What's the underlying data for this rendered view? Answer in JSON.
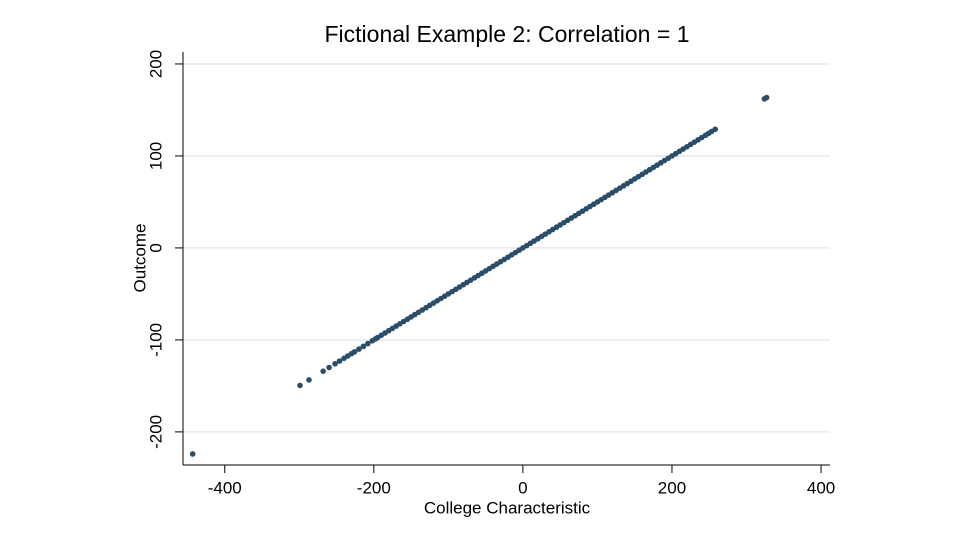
{
  "chart_data": {
    "type": "scatter",
    "title": "Fictional Example 2: Correlation = 1",
    "xlabel": "College Characteristic",
    "ylabel": "Outcome",
    "xlim": [
      -456,
      412
    ],
    "ylim": [
      -236,
      213
    ],
    "xticks": [
      -400,
      -200,
      0,
      200,
      400
    ],
    "yticks": [
      -200,
      -100,
      0,
      100,
      200
    ],
    "grid": true,
    "color": "#2a4d69",
    "x": [
      -443,
      -299,
      -287,
      -268,
      -260,
      -252,
      -246,
      -240,
      -235,
      -230,
      -226,
      -220,
      -214,
      -208,
      -202,
      -198,
      -195,
      -190,
      -185,
      -180,
      -175,
      -170,
      -165,
      -160,
      -155,
      -150,
      -145,
      -140,
      -135,
      -130,
      -125,
      -120,
      -115,
      -110,
      -105,
      -100,
      -95,
      -90,
      -85,
      -80,
      -75,
      -70,
      -65,
      -60,
      -55,
      -50,
      -45,
      -40,
      -35,
      -30,
      -25,
      -20,
      -15,
      -10,
      -5,
      0,
      5,
      10,
      15,
      20,
      25,
      30,
      35,
      40,
      45,
      50,
      55,
      60,
      65,
      70,
      75,
      80,
      85,
      90,
      95,
      100,
      105,
      110,
      115,
      120,
      125,
      130,
      135,
      140,
      145,
      150,
      155,
      160,
      165,
      170,
      175,
      180,
      185,
      190,
      195,
      200,
      205,
      210,
      215,
      220,
      225,
      230,
      235,
      240,
      245,
      249,
      253,
      258,
      324,
      327
    ],
    "y": [
      -224,
      -149.5,
      -143.5,
      -134,
      -130,
      -126,
      -123,
      -120,
      -117.5,
      -115,
      -113,
      -110,
      -107,
      -104,
      -101,
      -99,
      -97.5,
      -95,
      -92.5,
      -90,
      -87.5,
      -85,
      -82.5,
      -80,
      -77.5,
      -75,
      -72.5,
      -70,
      -67.5,
      -65,
      -62.5,
      -60,
      -57.5,
      -55,
      -52.5,
      -50,
      -47.5,
      -45,
      -42.5,
      -40,
      -37.5,
      -35,
      -32.5,
      -30,
      -27.5,
      -25,
      -22.5,
      -20,
      -17.5,
      -15,
      -12.5,
      -10,
      -7.5,
      -5,
      -2.5,
      0,
      2.5,
      5,
      7.5,
      10,
      12.5,
      15,
      17.5,
      20,
      22.5,
      25,
      27.5,
      30,
      32.5,
      35,
      37.5,
      40,
      42.5,
      45,
      47.5,
      50,
      52.5,
      55,
      57.5,
      60,
      62.5,
      65,
      67.5,
      70,
      72.5,
      75,
      77.5,
      80,
      82.5,
      85,
      87.5,
      90,
      92.5,
      95,
      97.5,
      100,
      102.5,
      105,
      107.5,
      110,
      112.5,
      115,
      117.5,
      120,
      122.5,
      124.5,
      126.5,
      129,
      162,
      163.5
    ]
  }
}
